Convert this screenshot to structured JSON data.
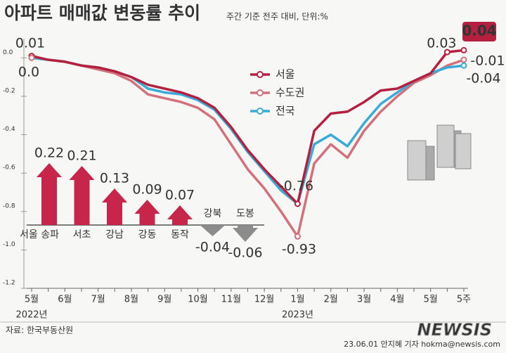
{
  "chart_data": [
    {
      "type": "line",
      "title": "아파트 매매값 변동률 추이",
      "subtitle": "주간 기준 전주 대비, 단위:%",
      "categories": [
        "5월",
        null,
        "6월",
        null,
        "7월",
        null,
        "8월",
        null,
        "9월",
        null,
        "10월",
        null,
        "11월",
        null,
        "12월",
        null,
        "1월",
        null,
        "2월",
        null,
        "3월",
        null,
        "4월",
        null,
        "5월",
        null,
        "5주"
      ],
      "years": [
        "2022년",
        "2023년"
      ],
      "series": [
        {
          "name": "서울",
          "color": "#b5203e",
          "values": [
            0.01,
            -0.01,
            -0.02,
            -0.04,
            -0.05,
            -0.07,
            -0.1,
            -0.14,
            -0.16,
            -0.18,
            -0.21,
            -0.26,
            -0.36,
            -0.48,
            -0.58,
            -0.67,
            -0.76,
            -0.38,
            -0.29,
            -0.28,
            -0.23,
            -0.17,
            -0.16,
            -0.12,
            -0.08,
            0.03,
            0.04
          ],
          "value_labels": [
            "0.01",
            null,
            null,
            null,
            null,
            null,
            null,
            null,
            null,
            null,
            null,
            null,
            null,
            null,
            null,
            null,
            "-0.76",
            null,
            null,
            null,
            null,
            null,
            null,
            null,
            null,
            "0.03",
            "0.04"
          ]
        },
        {
          "name": "수도권",
          "color": "#d4707a",
          "values": [
            0.0,
            -0.01,
            -0.02,
            -0.04,
            -0.06,
            -0.08,
            -0.12,
            -0.19,
            -0.21,
            -0.23,
            -0.26,
            -0.32,
            -0.45,
            -0.58,
            -0.68,
            -0.8,
            -0.93,
            -0.55,
            -0.45,
            -0.52,
            -0.38,
            -0.28,
            -0.2,
            -0.13,
            -0.09,
            -0.04,
            -0.01
          ],
          "value_labels": [
            "0.0",
            null,
            null,
            null,
            null,
            null,
            null,
            null,
            null,
            null,
            null,
            null,
            null,
            null,
            null,
            null,
            "-0.93",
            null,
            null,
            null,
            null,
            null,
            null,
            null,
            null,
            null,
            "-0.01"
          ]
        },
        {
          "name": "전국",
          "color": "#3aaad8",
          "values": [
            0.0,
            -0.01,
            -0.02,
            -0.04,
            -0.05,
            -0.07,
            -0.1,
            -0.16,
            -0.18,
            -0.19,
            -0.22,
            -0.27,
            -0.37,
            -0.49,
            -0.59,
            -0.69,
            -0.76,
            -0.45,
            -0.4,
            -0.46,
            -0.34,
            -0.24,
            -0.18,
            -0.12,
            -0.08,
            -0.05,
            -0.04
          ],
          "value_labels": [
            null,
            null,
            null,
            null,
            null,
            null,
            null,
            null,
            null,
            null,
            null,
            null,
            null,
            null,
            null,
            null,
            null,
            null,
            null,
            null,
            null,
            null,
            null,
            null,
            null,
            null,
            "-0.04"
          ]
        }
      ],
      "ylim": [
        -1.2,
        0.1
      ],
      "yticks": [
        {
          "value": 0,
          "label": "0.0"
        },
        -0.2,
        -0.4,
        -0.6,
        -0.8,
        {
          "value": -1,
          "label": "-1.0"
        },
        -1.2
      ],
      "grid": false
    },
    {
      "type": "bar",
      "categories": [
        "서울 송파",
        "서초",
        "강남",
        "강동",
        "동작",
        "강북",
        "도봉"
      ],
      "values": [
        0.22,
        0.21,
        0.13,
        0.09,
        0.07,
        -0.04,
        -0.06
      ],
      "color": "#c8254a",
      "negative_color": "#8c8c8c"
    }
  ],
  "footer": {
    "source": "자료: 한국부동산원",
    "credit": "23.06.01 안지혜 기자 hokma@newsis.com",
    "logo": "NEWSIS"
  }
}
